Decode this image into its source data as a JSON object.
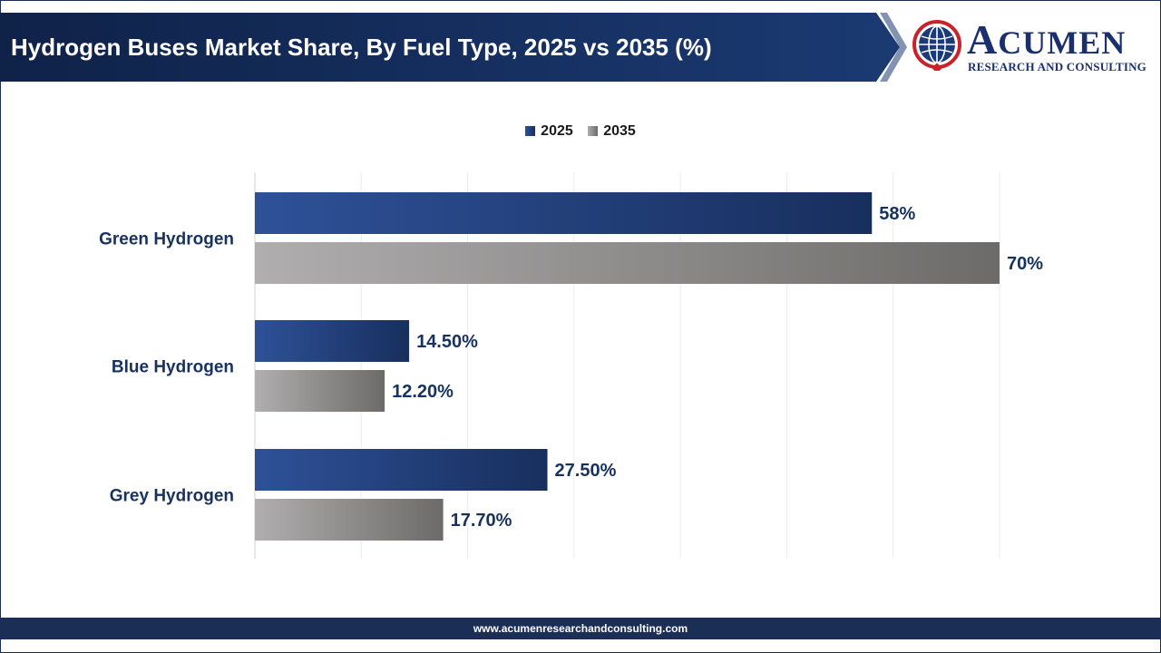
{
  "header": {
    "title": "Hydrogen Buses Market Share, By Fuel Type, 2025 vs 2035 (%)"
  },
  "logo": {
    "name_first": "A",
    "name_rest": "CUMEN",
    "tagline": "RESEARCH AND CONSULTING",
    "icon": "globe-icon"
  },
  "footer": {
    "url": "www.acumenresearchandconsulting.com"
  },
  "colors": {
    "banner": "#122a55",
    "series_2025_start": "#2e5198",
    "series_2025_end": "#182f5e",
    "series_2035_start": "#b0aeae",
    "series_2035_end": "#6d6a6a",
    "label_text": "#17325f"
  },
  "chart_data": {
    "type": "bar",
    "orientation": "horizontal",
    "categories": [
      "Green Hydrogen",
      "Blue Hydrogen",
      "Grey Hydrogen"
    ],
    "series": [
      {
        "name": "2025",
        "values": [
          58,
          14.5,
          27.5
        ],
        "labels": [
          "58%",
          "14.50%",
          "27.50%"
        ]
      },
      {
        "name": "2035",
        "values": [
          70,
          12.2,
          17.7
        ],
        "labels": [
          "70%",
          "12.20%",
          "17.70%"
        ]
      }
    ],
    "xlim": [
      0,
      70
    ],
    "grid": true,
    "legend_position": "top-center"
  }
}
